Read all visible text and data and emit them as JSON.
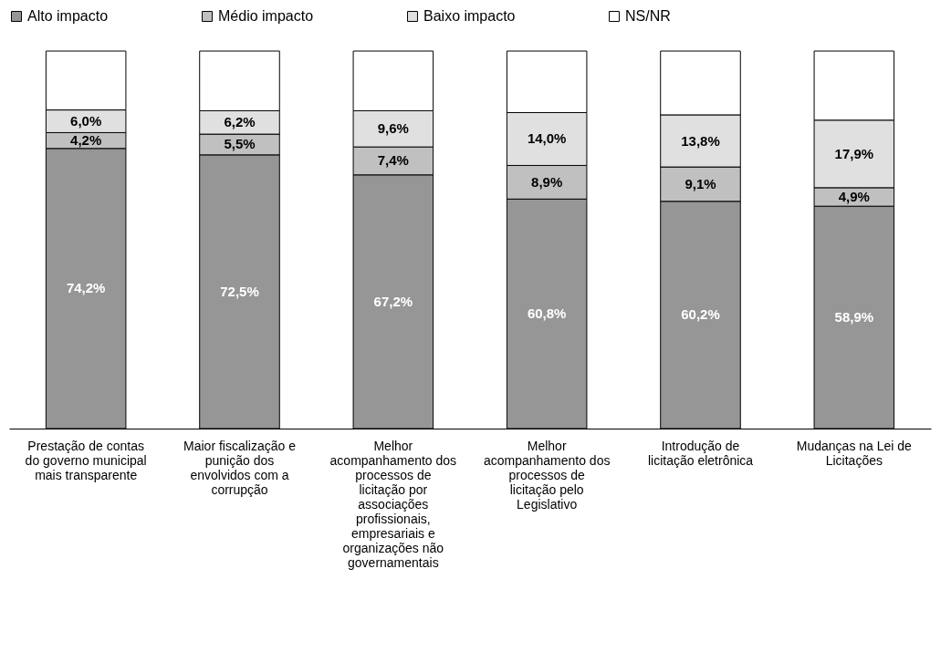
{
  "chart_data": {
    "type": "bar",
    "stacked": true,
    "legend": "top",
    "categories": [
      "Prestação de contas do governo municipal mais transparente",
      "Maior fiscalização e punição dos envolvidos com a corrupção",
      "Melhor acompanhamento dos processos de licitação por associações profissionais, empresariais e organizações não governamentais",
      "Melhor acompanhamento dos processos de licitação pelo Legislativo",
      "Introdução de licitação eletrônica",
      "Mudanças na Lei de Licitações"
    ],
    "series": [
      {
        "name": "Alto impacto",
        "color": "#969696",
        "values": [
          74.2,
          72.5,
          67.2,
          60.8,
          60.2,
          58.9
        ],
        "value_labels": [
          "74,2%",
          "72,5%",
          "67,2%",
          "60,8%",
          "60,2%",
          "58,9%"
        ]
      },
      {
        "name": "Médio impacto",
        "color": "#c0c0c0",
        "values": [
          4.2,
          5.5,
          7.4,
          8.9,
          9.1,
          4.9
        ],
        "value_labels": [
          "4,2%",
          "5,5%",
          "7,4%",
          "8,9%",
          "9,1%",
          "4,9%"
        ]
      },
      {
        "name": "Baixo impacto",
        "color": "#e0e0e0",
        "values": [
          6.0,
          6.2,
          9.6,
          14.0,
          13.8,
          17.9
        ],
        "value_labels": [
          "6,0%",
          "6,2%",
          "9,6%",
          "14,0%",
          "13,8%",
          "17,9%"
        ]
      },
      {
        "name": "NS/NR",
        "color": "#ffffff",
        "values": [
          15.6,
          15.8,
          15.8,
          16.3,
          16.9,
          18.3
        ],
        "value_labels": [
          null,
          null,
          null,
          null,
          null,
          null
        ]
      }
    ]
  }
}
